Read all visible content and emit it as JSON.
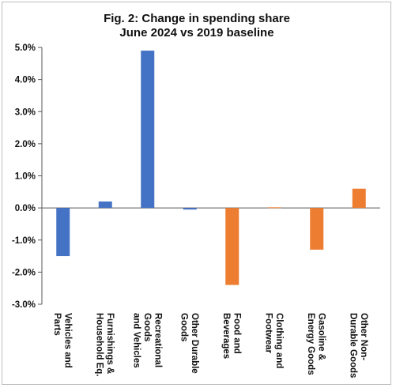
{
  "chart_data": {
    "type": "bar",
    "title": "Fig. 2: Change in spending share",
    "subtitle": "June 2024 vs 2019 baseline",
    "xlabel": "",
    "ylabel": "",
    "ylim": [
      -3.0,
      5.0
    ],
    "yticks": [
      5.0,
      4.0,
      3.0,
      2.0,
      1.0,
      0.0,
      -1.0,
      -2.0,
      -3.0
    ],
    "ytick_labels": [
      "5.0%",
      "4.0%",
      "3.0%",
      "2.0%",
      "1.0%",
      "0.0%",
      "-1.0%",
      "-2.0%",
      "-3.0%"
    ],
    "grid": false,
    "legend": "none",
    "categories": [
      [
        "Vehicles and",
        "Parts"
      ],
      [
        "Furnishings &",
        "Household Eq."
      ],
      [
        "Recreational",
        "Goods",
        "and Vehicles"
      ],
      [
        "Other Durable",
        "Goods"
      ],
      [
        "Food and",
        "Beverages"
      ],
      [
        "Clothing and",
        "Footwear"
      ],
      [
        "Gasoline &",
        "Energy Goods"
      ],
      [
        "Other Non-",
        "Durable Goods"
      ]
    ],
    "values": [
      -1.5,
      0.2,
      4.9,
      -0.05,
      -2.4,
      0.02,
      -1.3,
      0.6
    ],
    "colors": [
      "#4472C4",
      "#4472C4",
      "#4472C4",
      "#4472C4",
      "#ED7D31",
      "#ED7D31",
      "#ED7D31",
      "#ED7D31"
    ],
    "axis_color": "#595959"
  }
}
